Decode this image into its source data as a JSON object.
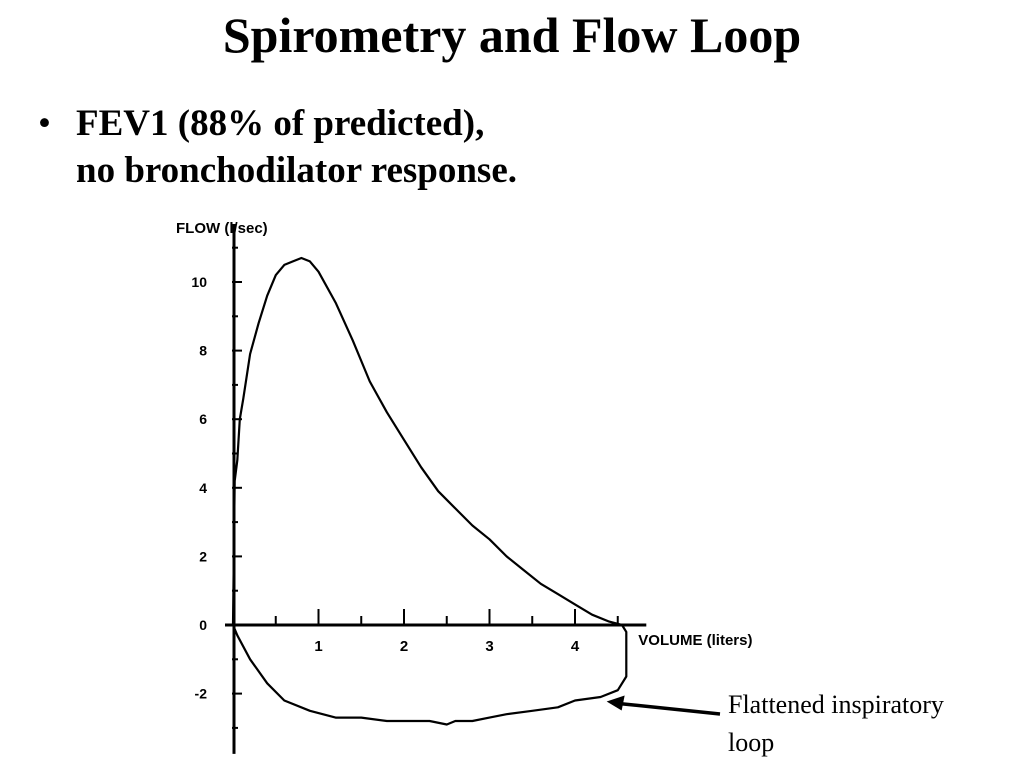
{
  "slide": {
    "title": "Spirometry and Flow Loop",
    "bullet": {
      "line1": "FEV1 (88% of predicted),",
      "line2": "no bronchodilator response."
    }
  },
  "chart_data": {
    "type": "line",
    "title": "",
    "ylabel": "FLOW (l/sec)",
    "xlabel": "VOLUME (liters)",
    "xlim": [
      0,
      4.6
    ],
    "ylim": [
      -3.7,
      11.4
    ],
    "x_ticks": [
      "1",
      "2",
      "3",
      "4"
    ],
    "y_ticks": [
      "10",
      "8",
      "6",
      "4",
      "2",
      "0",
      "-2"
    ],
    "grid": false,
    "series": [
      {
        "points": [
          [
            0,
            0
          ],
          [
            0.02,
            4.2
          ],
          [
            0.05,
            4.8
          ],
          [
            0.08,
            6.0
          ],
          [
            0.12,
            6.6
          ],
          [
            0.2,
            7.9
          ],
          [
            0.3,
            8.8
          ],
          [
            0.4,
            9.6
          ],
          [
            0.5,
            10.2
          ],
          [
            0.6,
            10.5
          ],
          [
            0.7,
            10.6
          ],
          [
            0.8,
            10.7
          ],
          [
            0.9,
            10.6
          ],
          [
            1.0,
            10.3
          ],
          [
            1.2,
            9.4
          ],
          [
            1.4,
            8.3
          ],
          [
            1.6,
            7.1
          ],
          [
            1.8,
            6.2
          ],
          [
            2.0,
            5.4
          ],
          [
            2.2,
            4.6
          ],
          [
            2.4,
            3.9
          ],
          [
            2.6,
            3.4
          ],
          [
            2.8,
            2.9
          ],
          [
            3.0,
            2.5
          ],
          [
            3.2,
            2.0
          ],
          [
            3.4,
            1.6
          ],
          [
            3.6,
            1.2
          ],
          [
            3.8,
            0.9
          ],
          [
            4.0,
            0.6
          ],
          [
            4.2,
            0.3
          ],
          [
            4.4,
            0.1
          ],
          [
            4.55,
            0.0
          ],
          [
            4.6,
            -0.2
          ],
          [
            4.6,
            -1.5
          ],
          [
            4.5,
            -1.9
          ],
          [
            4.3,
            -2.1
          ],
          [
            4.0,
            -2.2
          ],
          [
            3.8,
            -2.4
          ],
          [
            3.5,
            -2.5
          ],
          [
            3.2,
            -2.6
          ],
          [
            3.0,
            -2.7
          ],
          [
            2.8,
            -2.8
          ],
          [
            2.6,
            -2.8
          ],
          [
            2.5,
            -2.9
          ],
          [
            2.3,
            -2.8
          ],
          [
            2.0,
            -2.8
          ],
          [
            1.8,
            -2.8
          ],
          [
            1.5,
            -2.7
          ],
          [
            1.2,
            -2.7
          ],
          [
            0.9,
            -2.5
          ],
          [
            0.6,
            -2.2
          ],
          [
            0.4,
            -1.7
          ],
          [
            0.2,
            -1.0
          ],
          [
            0.05,
            -0.3
          ],
          [
            0,
            0
          ]
        ]
      }
    ],
    "annotation": {
      "text_line1": "Flattened inspiratory",
      "text_line2": "loop",
      "target": [
        4.3,
        -2.2
      ]
    }
  }
}
